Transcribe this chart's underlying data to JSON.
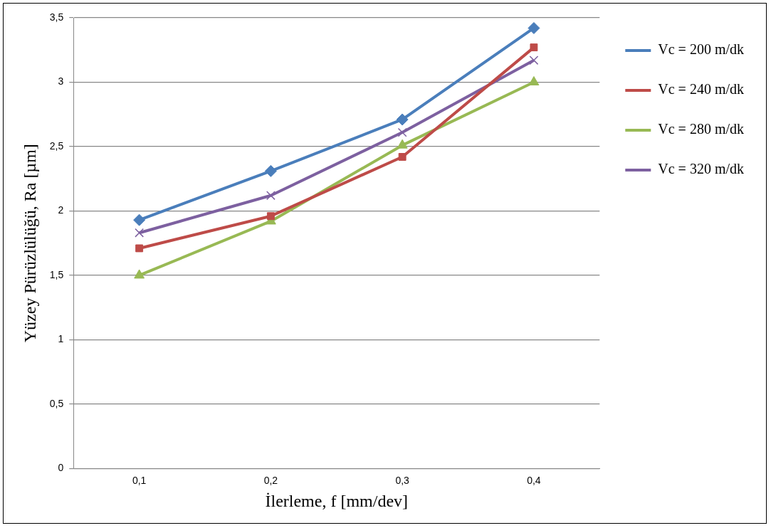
{
  "chart_data": {
    "type": "line",
    "xlabel": "İlerleme, f [mm/dev]",
    "ylabel": "Yüzey Pürüzlülüğü, Ra [µm]",
    "categories": [
      "0,1",
      "0,2",
      "0,3",
      "0,4"
    ],
    "series": [
      {
        "name": "Vc = 200 m/dk",
        "color": "#4a7ebb",
        "marker": "diamond",
        "values": [
          1.93,
          2.31,
          2.71,
          3.42
        ]
      },
      {
        "name": "Vc = 240 m/dk",
        "color": "#be4b48",
        "marker": "square",
        "values": [
          1.71,
          1.96,
          2.42,
          3.27
        ]
      },
      {
        "name": "Vc = 280 m/dk",
        "color": "#98b954",
        "marker": "triangle",
        "values": [
          1.5,
          1.92,
          2.51,
          3.0
        ]
      },
      {
        "name": "Vc = 320 m/dk",
        "color": "#7d60a0",
        "marker": "cross",
        "values": [
          1.83,
          2.12,
          2.61,
          3.17
        ]
      }
    ],
    "ylim": [
      0,
      3.5
    ],
    "yticks": [
      {
        "value": 0,
        "label": "0"
      },
      {
        "value": 0.5,
        "label": "0,5"
      },
      {
        "value": 1,
        "label": "1"
      },
      {
        "value": 1.5,
        "label": "1,5"
      },
      {
        "value": 2,
        "label": "2"
      },
      {
        "value": 2.5,
        "label": "2,5"
      },
      {
        "value": 3,
        "label": "3"
      },
      {
        "value": 3.5,
        "label": "3,5"
      }
    ],
    "grid": "y",
    "legend": "top right",
    "line_style": "solid"
  }
}
